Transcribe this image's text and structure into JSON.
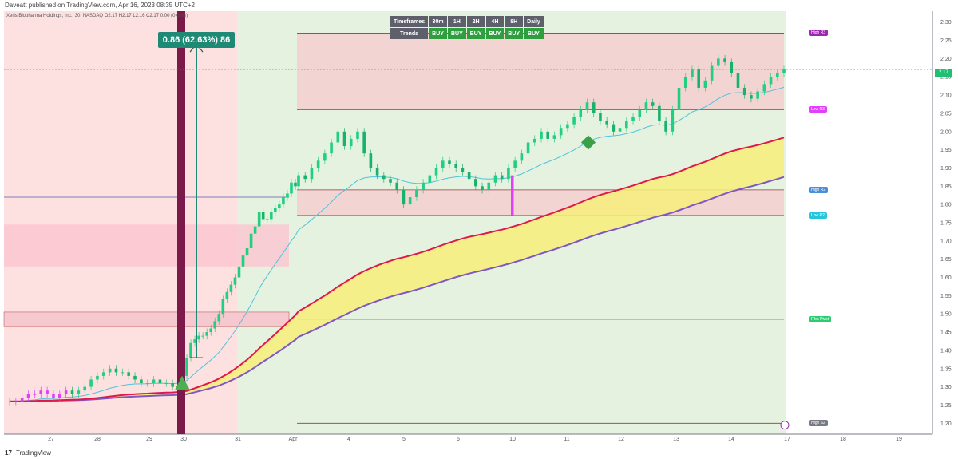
{
  "header": {
    "published": "Daveatt published on TradingView.com, Apr 16, 2023 08:35 UTC+2"
  },
  "footer": {
    "brand": "TradingView",
    "brand_mark": "17"
  },
  "legend": {
    "text": "Xeris Biopharma Holdings, Inc., 30, NASDAQ  O2.17  H2.17  L2.16  C2.17  0.00 (0.00%)"
  },
  "measure": {
    "label": "0.86 (62.63%) 86"
  },
  "last_price": {
    "label": "2.17",
    "value": 2.17
  },
  "timeframes_table": {
    "header_label": "Timeframes",
    "row_label": "Trends",
    "timeframes": [
      "30m",
      "1H",
      "2H",
      "4H",
      "8H",
      "Daily"
    ],
    "trends": [
      "BUY",
      "BUY",
      "BUY",
      "BUY",
      "BUY",
      "BUY"
    ]
  },
  "colors": {
    "bull": "#20d080",
    "bear": "#20d080",
    "signal_magenta": "#e040fb",
    "ema_fast": "#e0184a",
    "ema_slow": "#7e57c2",
    "ema_cyan": "#4fc3dc",
    "bg_red": "#fde0e0",
    "bg_green": "#e5f2df",
    "band_fill": "#f7ef7a",
    "zone_fill": "#f5c9cf",
    "accent_teal": "#1e8a75"
  },
  "chart_data": {
    "type": "candlestick",
    "ylim": [
      1.17,
      2.33
    ],
    "y_ticks": [
      1.2,
      1.25,
      1.3,
      1.35,
      1.4,
      1.45,
      1.5,
      1.55,
      1.6,
      1.65,
      1.7,
      1.75,
      1.8,
      1.85,
      1.9,
      1.95,
      2.0,
      2.05,
      2.1,
      2.15,
      2.2,
      2.25,
      2.3
    ],
    "x_ticks": [
      "27",
      "28",
      "29",
      "30",
      "31",
      "Apr",
      "4",
      "5",
      "6",
      "10",
      "11",
      "12",
      "13",
      "14",
      "17",
      "18",
      "19"
    ],
    "levels": [
      {
        "name": "High R3",
        "value": 2.27,
        "color": "#9c27b0"
      },
      {
        "name": "Low R3",
        "value": 2.06,
        "color": "#e040fb"
      },
      {
        "name": "High R2",
        "value": 1.84,
        "color": "#4a90d9"
      },
      {
        "name": "Low R2",
        "value": 1.77,
        "color": "#26c6da"
      },
      {
        "name": "Fibo Pivot",
        "value": 1.485,
        "color": "#2ecc71"
      },
      {
        "name": "High S2",
        "value": 1.2,
        "color": "#787b86"
      }
    ],
    "close": [
      1.26,
      1.26,
      1.27,
      1.28,
      1.28,
      1.29,
      1.28,
      1.27,
      1.28,
      1.29,
      1.28,
      1.29,
      1.3,
      1.32,
      1.33,
      1.34,
      1.35,
      1.34,
      1.34,
      1.33,
      1.32,
      1.31,
      1.31,
      1.32,
      1.31,
      1.31,
      1.3,
      1.33,
      1.38,
      1.42,
      1.43,
      1.44,
      1.44,
      1.45,
      1.46,
      1.48,
      1.5,
      1.54,
      1.56,
      1.58,
      1.6,
      1.63,
      1.66,
      1.68,
      1.72,
      1.74,
      1.78,
      1.76,
      1.76,
      1.78,
      1.79,
      1.8,
      1.82,
      1.83,
      1.86,
      1.85,
      1.88,
      1.87,
      1.9,
      1.92,
      1.94,
      1.97,
      2.0,
      1.96,
      1.98,
      2.0,
      1.94,
      1.9,
      1.88,
      1.87,
      1.86,
      1.84,
      1.8,
      1.82,
      1.84,
      1.86,
      1.88,
      1.9,
      1.92,
      1.91,
      1.9,
      1.89,
      1.87,
      1.85,
      1.84,
      1.86,
      1.88,
      1.87,
      1.9,
      1.92,
      1.94,
      1.97,
      1.98,
      2.0,
      1.98,
      1.99,
      2.01,
      2.02,
      2.04,
      2.06,
      2.08,
      2.05,
      2.03,
      2.02,
      2.0,
      2.01,
      2.03,
      2.04,
      2.06,
      2.08,
      2.07,
      2.03,
      2.0,
      2.06,
      2.12,
      2.15,
      2.17,
      2.12,
      2.14,
      2.18,
      2.2,
      2.19,
      2.16,
      2.12,
      2.1,
      2.09,
      2.11,
      2.13,
      2.15,
      2.16,
      2.17
    ]
  }
}
